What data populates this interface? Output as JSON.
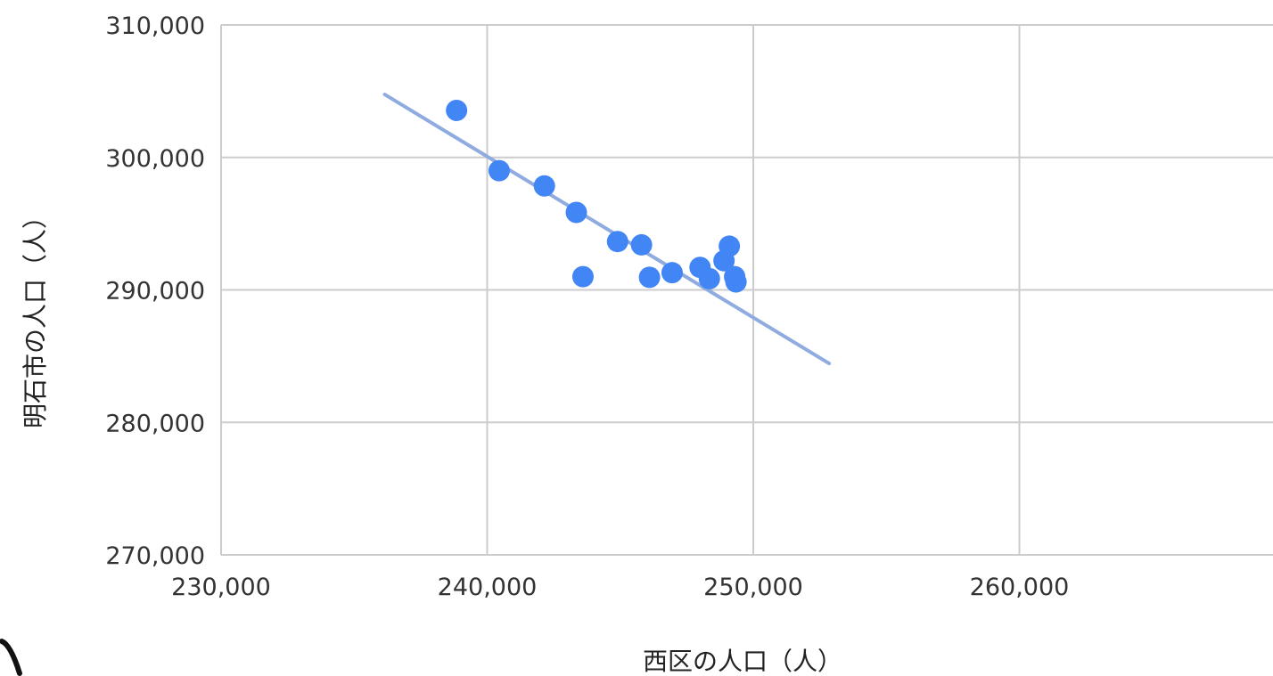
{
  "chart_data": {
    "type": "scatter",
    "xlabel": "西区の人口（人）",
    "ylabel": "明石市の人口（人）",
    "xlim": [
      230000,
      270000
    ],
    "ylim": [
      270000,
      310000
    ],
    "x_ticks": [
      "230,000",
      "240,000",
      "250,000",
      "260,000"
    ],
    "y_ticks": [
      "270,000",
      "280,000",
      "290,000",
      "300,000",
      "310,000"
    ],
    "grid": true,
    "legend": "none",
    "point_color": "#4285f4",
    "trendline_color": "#8fabe0",
    "points": [
      {
        "x": 238850,
        "y": 303550
      },
      {
        "x": 240450,
        "y": 299000
      },
      {
        "x": 242150,
        "y": 297850
      },
      {
        "x": 243350,
        "y": 295850
      },
      {
        "x": 243600,
        "y": 291000
      },
      {
        "x": 244900,
        "y": 293650
      },
      {
        "x": 245800,
        "y": 293400
      },
      {
        "x": 246100,
        "y": 290950
      },
      {
        "x": 246950,
        "y": 291300
      },
      {
        "x": 248000,
        "y": 291700
      },
      {
        "x": 248350,
        "y": 290850
      },
      {
        "x": 248900,
        "y": 292200
      },
      {
        "x": 249100,
        "y": 293300
      },
      {
        "x": 249300,
        "y": 291000
      },
      {
        "x": 249350,
        "y": 290600
      }
    ],
    "trendline": {
      "x": [
        236150,
        252850
      ],
      "y": [
        304750,
        284450
      ]
    }
  }
}
